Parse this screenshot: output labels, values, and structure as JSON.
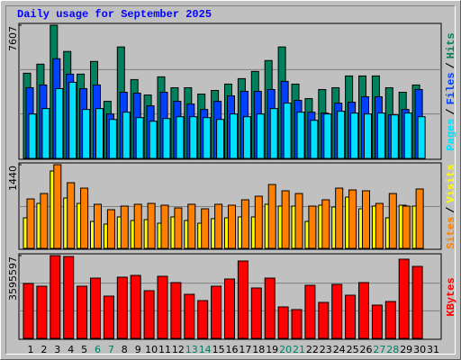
{
  "title": "Daily usage for September 2025",
  "legend_separator": "/",
  "x_axis": {
    "categories": [
      "1",
      "2",
      "3",
      "4",
      "5",
      "6",
      "7",
      "8",
      "9",
      "10",
      "11",
      "12",
      "13",
      "14",
      "15",
      "16",
      "17",
      "18",
      "19",
      "20",
      "21",
      "22",
      "23",
      "24",
      "25",
      "26",
      "27",
      "28",
      "29",
      "30",
      "31"
    ],
    "colors": [
      "#000000",
      "#000000",
      "#000000",
      "#000000",
      "#000000",
      "#008060",
      "#008060",
      "#000000",
      "#000000",
      "#000000",
      "#000000",
      "#000000",
      "#008060",
      "#008060",
      "#000000",
      "#000000",
      "#000000",
      "#000000",
      "#000000",
      "#008060",
      "#008060",
      "#000000",
      "#000000",
      "#000000",
      "#000000",
      "#000000",
      "#008060",
      "#008060",
      "#000000",
      "#000000",
      "#000000"
    ]
  },
  "chart_data": [
    {
      "type": "bar",
      "ylim": [
        0,
        7607
      ],
      "yticks": [
        7607
      ],
      "grid_divisions": 3,
      "series": [
        {
          "name": "Hits",
          "color": "#00805c",
          "values": [
            4864,
            5382,
            7607,
            6106,
            4813,
            5537,
            3260,
            6365,
            4502,
            3622,
            4657,
            4036,
            4036,
            3674,
            3881,
            4243,
            4554,
            4968,
            5589,
            6365,
            4243,
            3415,
            3933,
            4036,
            4709,
            4709,
            4709,
            4036,
            3778,
            4192,
            null
          ]
        },
        {
          "name": "Files",
          "color": "#0040ff",
          "values": [
            4036,
            4192,
            5692,
            4813,
            3985,
            4192,
            2536,
            3778,
            3726,
            3002,
            3778,
            3260,
            3105,
            2795,
            3260,
            3571,
            3830,
            3830,
            3933,
            4399,
            3312,
            2639,
            2588,
            3157,
            3209,
            3519,
            3519,
            2484,
            2795,
            3933,
            null
          ]
        },
        {
          "name": "Pages",
          "color": "#00e0ff",
          "values": [
            2536,
            2846,
            3985,
            4347,
            2795,
            2846,
            2225,
            2639,
            2329,
            2122,
            2277,
            2381,
            2381,
            2329,
            2225,
            2536,
            2381,
            2536,
            2846,
            3157,
            2639,
            2174,
            2536,
            2691,
            2588,
            2536,
            2588,
            2484,
            2588,
            2381,
            null
          ]
        }
      ]
    },
    {
      "type": "bar",
      "ylim": [
        0,
        1440
      ],
      "yticks": [
        1440
      ],
      "grid_divisions": 2,
      "series": [
        {
          "name": "Visits",
          "color": "#ffff00",
          "values": [
            526,
            774,
            1331,
            867,
            774,
            464,
            418,
            542,
            480,
            495,
            433,
            542,
            480,
            433,
            511,
            526,
            542,
            542,
            759,
            728,
            728,
            464,
            743,
            712,
            882,
            681,
            728,
            526,
            743,
            728,
            null
          ]
        },
        {
          "name": "Sites",
          "color": "#ff8000",
          "values": [
            851,
            944,
            1440,
            1130,
            1037,
            759,
            666,
            728,
            759,
            774,
            743,
            697,
            759,
            681,
            759,
            743,
            836,
            898,
            1099,
            991,
            944,
            728,
            836,
            1037,
            1006,
            991,
            774,
            944,
            728,
            1022,
            null
          ]
        }
      ]
    },
    {
      "type": "bar",
      "ylim": [
        0,
        3595597
      ],
      "yticks": [
        3595597
      ],
      "grid_divisions": 3,
      "series": [
        {
          "name": "KBytes",
          "color": "#ff0000",
          "values": [
            2384063,
            2266814,
            3595597,
            3556553,
            2266814,
            2618561,
            1836901,
            2657644,
            2735810,
            2071399,
            2696727,
            2423146,
            1915067,
            1641486,
            2266814,
            2579478,
            3361138,
            2188648,
            2618561,
            1367905,
            1250656,
            2305897,
            1563320,
            2344980,
            1875984,
            2423146,
            1446071,
            1602403,
            3439304,
            3126640,
            null
          ]
        }
      ]
    }
  ]
}
